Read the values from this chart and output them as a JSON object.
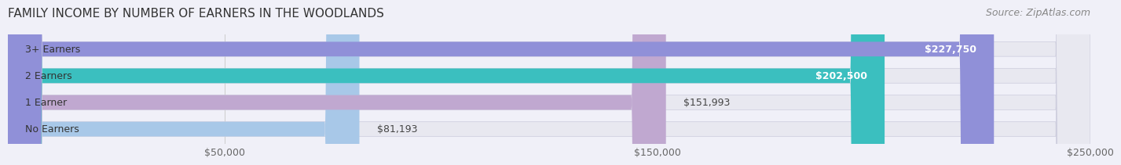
{
  "title": "FAMILY INCOME BY NUMBER OF EARNERS IN THE WOODLANDS",
  "source": "Source: ZipAtlas.com",
  "categories": [
    "No Earners",
    "1 Earner",
    "2 Earners",
    "3+ Earners"
  ],
  "values": [
    81193,
    151993,
    202500,
    227750
  ],
  "bar_colors": [
    "#a8c8e8",
    "#c0a8d0",
    "#3bbfbf",
    "#9090d8"
  ],
  "bar_bg_color": "#e8e8f0",
  "value_labels": [
    "$81,193",
    "$151,993",
    "$202,500",
    "$227,750"
  ],
  "xlim": [
    0,
    250000
  ],
  "xticks": [
    50000,
    150000,
    250000
  ],
  "xtick_labels": [
    "$50,000",
    "$150,000",
    "$250,000"
  ],
  "title_fontsize": 11,
  "source_fontsize": 9,
  "label_fontsize": 9,
  "tick_fontsize": 9,
  "background_color": "#f0f0f8",
  "plot_bg_color": "#f0f0f8"
}
